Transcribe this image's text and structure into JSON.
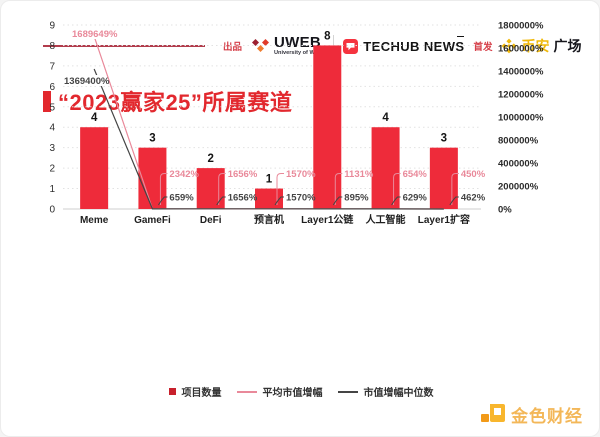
{
  "title": "“2023赢家25”所属赛道",
  "header": {
    "produced_by": "出品",
    "uweb_name": "UWEB",
    "uweb_subtitle": "University of Web3",
    "techub_name": "TECHUB NEWS",
    "first_published": "首发",
    "binance_gold": "币安",
    "binance_black": "广场"
  },
  "chart_data": {
    "type": "bar",
    "title": "“2023赢家25”所属赛道",
    "categories": [
      "Meme",
      "GameFi",
      "DeFi",
      "预言机",
      "Layer1公链",
      "人工智能",
      "Layer1扩容"
    ],
    "series": [
      {
        "name": "项目数量",
        "type": "bar",
        "axis": "left",
        "color": "#ee2b3a",
        "values": [
          4,
          3,
          2,
          1,
          8,
          4,
          3
        ]
      },
      {
        "name": "平均市值增幅",
        "type": "line",
        "axis": "right",
        "color": "#e9899a",
        "values": [
          1689649,
          2342,
          1656,
          1570,
          1131,
          654,
          450
        ],
        "labels": [
          "1689649%",
          "2342%",
          "1656%",
          "1570%",
          "1131%",
          "654%",
          "450%"
        ]
      },
      {
        "name": "市值增幅中位数",
        "type": "line",
        "axis": "right",
        "color": "#454545",
        "values": [
          1369400,
          659,
          1656,
          1570,
          895,
          629,
          462
        ],
        "labels": [
          "1369400%",
          "659%",
          "1656%",
          "1570%",
          "895%",
          "629%",
          "462%"
        ]
      }
    ],
    "left_axis": {
      "max": 9,
      "ticks": [
        "0",
        "1",
        "2",
        "3",
        "4",
        "5",
        "6",
        "7",
        "8",
        "9"
      ]
    },
    "right_axis": {
      "max": 1800000,
      "labels": [
        "1800000%",
        "1600000%",
        "1400000%",
        "1200000%",
        "1000000%",
        "800000%",
        "400000%",
        "200000%",
        "0%"
      ]
    },
    "grid": "dotted-horizontal",
    "legend_position": "bottom"
  },
  "legend": {
    "items": [
      {
        "label": "项目数量",
        "swatch": "square",
        "color": "#c8202c"
      },
      {
        "label": "平均市值增幅",
        "swatch": "line",
        "color": "#e9899a"
      },
      {
        "label": "市值增幅中位数",
        "swatch": "line",
        "color": "#454545"
      }
    ]
  },
  "footer": {
    "logo_text": "金色财经"
  },
  "colors": {
    "accent_red": "#e2282e",
    "bar_red": "#ee2b3a",
    "avg_line_pink": "#e9899a",
    "median_line_dark": "#454545",
    "binance_gold": "#f0b90b",
    "jinse_gold": "#f2ab3c"
  }
}
